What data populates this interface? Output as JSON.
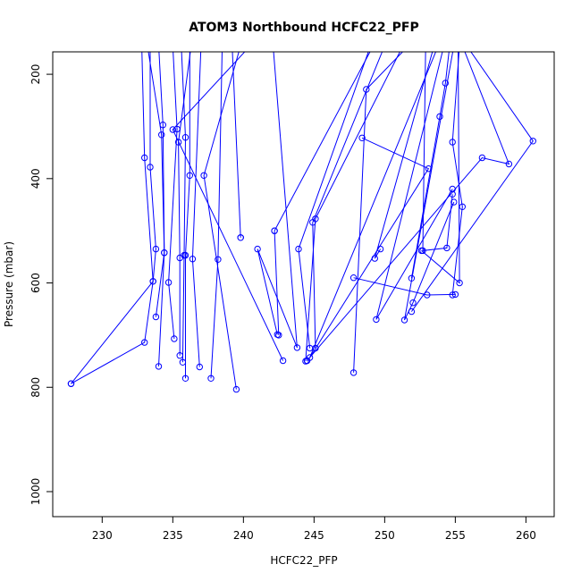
{
  "chart_data": {
    "type": "line",
    "title": "ATOM3 Northbound HCFC22_PFP",
    "xlabel": "HCFC22_PFP",
    "ylabel": "Pressure (mbar)",
    "xlim": [
      226.5,
      262.0
    ],
    "ylim": [
      1048,
      157
    ],
    "y_reversed": true,
    "x_ticks": [
      230,
      235,
      240,
      245,
      250,
      255,
      260
    ],
    "y_ticks": [
      200,
      400,
      600,
      800,
      1000
    ],
    "grid": false,
    "color": "#0000ff",
    "profiles": [
      [
        [
          232.8,
          145
        ],
        [
          233.0,
          360
        ],
        [
          233.6,
          597
        ],
        [
          233.0,
          714
        ],
        [
          227.8,
          793
        ]
      ],
      [
        [
          233.4,
          145
        ],
        [
          233.4,
          378
        ],
        [
          233.8,
          535
        ],
        [
          233.6,
          597
        ],
        [
          227.8,
          793
        ]
      ],
      [
        [
          234.0,
          145
        ],
        [
          234.3,
          297
        ],
        [
          234.4,
          542
        ],
        [
          234.0,
          760
        ]
      ],
      [
        [
          233.2,
          145
        ],
        [
          234.2,
          316
        ],
        [
          234.4,
          542
        ],
        [
          233.8,
          665
        ]
      ],
      [
        [
          235.0,
          145
        ],
        [
          235.3,
          305
        ],
        [
          234.7,
          599
        ],
        [
          235.1,
          707
        ]
      ],
      [
        [
          236.3,
          145
        ],
        [
          235.4,
          330
        ],
        [
          235.5,
          552
        ],
        [
          235.5,
          739
        ]
      ],
      [
        [
          235.6,
          145
        ],
        [
          235.9,
          321
        ],
        [
          235.8,
          547
        ],
        [
          235.7,
          752
        ]
      ],
      [
        [
          236.2,
          145
        ],
        [
          236.2,
          394
        ],
        [
          235.9,
          547
        ],
        [
          235.9,
          783
        ]
      ],
      [
        [
          237.0,
          145
        ],
        [
          236.4,
          554
        ],
        [
          236.9,
          761
        ]
      ],
      [
        [
          238.5,
          145
        ],
        [
          238.2,
          555
        ],
        [
          237.7,
          783
        ]
      ],
      [
        [
          239.8,
          145
        ],
        [
          237.2,
          394
        ],
        [
          239.5,
          804
        ]
      ],
      [
        [
          239.2,
          145
        ],
        [
          239.8,
          513
        ],
        [
          239.8,
          513
        ]
      ],
      [
        [
          240.5,
          145
        ],
        [
          235.0,
          306
        ],
        [
          242.8,
          749
        ]
      ],
      [
        [
          242.1,
          145
        ],
        [
          243.8,
          724
        ],
        [
          241.0,
          535
        ],
        [
          242.4,
          699
        ]
      ],
      [
        [
          242.2,
          500
        ],
        [
          242.5,
          700
        ]
      ],
      [
        [
          249.2,
          145
        ],
        [
          242.2,
          500
        ]
      ],
      [
        [
          249.0,
          145
        ],
        [
          243.9,
          535
        ],
        [
          244.7,
          725
        ]
      ],
      [
        [
          250.0,
          145
        ],
        [
          244.9,
          484
        ],
        [
          245.1,
          725
        ]
      ],
      [
        [
          251.3,
          145
        ],
        [
          245.1,
          477
        ],
        [
          244.4,
          750
        ]
      ],
      [
        [
          251.7,
          145
        ],
        [
          248.7,
          229
        ],
        [
          247.8,
          772
        ]
      ],
      [
        [
          253.8,
          145
        ],
        [
          244.7,
          743
        ],
        [
          253.1,
          381
        ],
        [
          248.4,
          322
        ]
      ],
      [
        [
          253.5,
          145
        ],
        [
          249.3,
          553
        ],
        [
          249.7,
          535
        ]
      ],
      [
        [
          254.2,
          145
        ],
        [
          249.4,
          670
        ],
        [
          254.8,
          420
        ]
      ],
      [
        [
          254.6,
          145
        ],
        [
          254.3,
          217
        ],
        [
          253.9,
          281
        ],
        [
          251.9,
          591
        ]
      ],
      [
        [
          255.3,
          145
        ],
        [
          254.8,
          330
        ],
        [
          255.5,
          454
        ],
        [
          254.8,
          623
        ]
      ],
      [
        [
          255.2,
          145
        ],
        [
          255.3,
          600
        ],
        [
          252.6,
          538
        ]
      ],
      [
        [
          254.9,
          145
        ],
        [
          251.4,
          671
        ],
        [
          252.0,
          638
        ],
        [
          254.9,
          445
        ]
      ],
      [
        [
          255.5,
          145
        ],
        [
          258.8,
          372
        ],
        [
          256.9,
          360
        ],
        [
          244.5,
          749
        ],
        [
          244.5,
          749
        ]
      ],
      [
        [
          255.8,
          145
        ],
        [
          260.5,
          328
        ],
        [
          251.9,
          655
        ]
      ],
      [
        [
          247.8,
          590
        ],
        [
          253.0,
          623
        ],
        [
          255.0,
          622
        ]
      ],
      [
        [
          252.9,
          145
        ],
        [
          252.7,
          538
        ],
        [
          254.4,
          533
        ],
        [
          254.8,
          430
        ]
      ]
    ]
  }
}
